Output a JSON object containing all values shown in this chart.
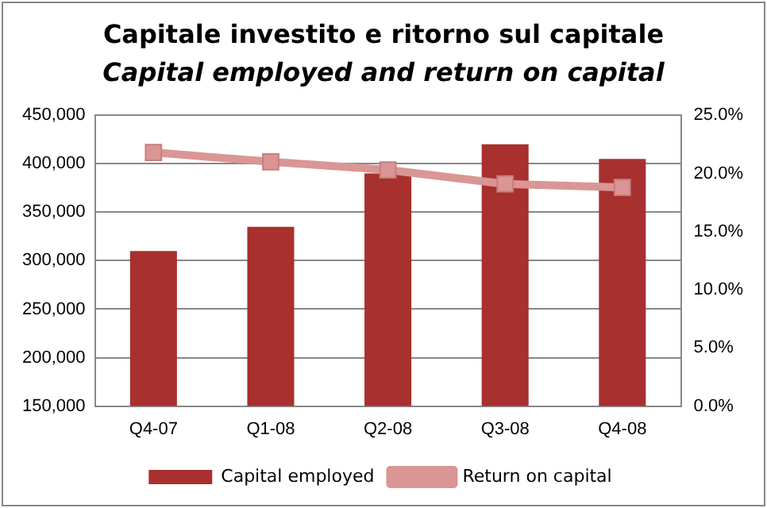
{
  "chart_data": {
    "type": "bar",
    "title": "Capitale investito e ritorno sul capitale",
    "subtitle": "Capital employed and return on capital",
    "categories": [
      "Q4-07",
      "Q1-08",
      "Q2-08",
      "Q3-08",
      "Q4-08"
    ],
    "series": [
      {
        "name": "Capital employed",
        "color": "#a8302e",
        "values": [
          310000,
          335000,
          390000,
          420000,
          405000
        ]
      },
      {
        "name": "Return on capital",
        "type": "line",
        "axis": "y2",
        "color": "#d99694",
        "marker": "square",
        "values": [
          21.8,
          21.0,
          20.3,
          19.1,
          18.8
        ]
      }
    ],
    "ylim": [
      150000,
      450000
    ],
    "yticks": [
      {
        "value": 150000,
        "label": "150,000"
      },
      {
        "value": 200000,
        "label": "200,000"
      },
      {
        "value": 250000,
        "label": "250,000"
      },
      {
        "value": 300000,
        "label": "300,000"
      },
      {
        "value": 350000,
        "label": "350,000"
      },
      {
        "value": 400000,
        "label": "400,000"
      },
      {
        "value": 450000,
        "label": "450,000"
      }
    ],
    "y2lim": [
      0,
      25
    ],
    "y2ticks": [
      {
        "value": 0,
        "label": "0.0%"
      },
      {
        "value": 5,
        "label": "5.0%"
      },
      {
        "value": 10,
        "label": "10.0%"
      },
      {
        "value": 15,
        "label": "15.0%"
      },
      {
        "value": 20,
        "label": "20.0%"
      },
      {
        "value": 25,
        "label": "25.0%"
      }
    ],
    "grid": "y",
    "legend": "bottom"
  }
}
